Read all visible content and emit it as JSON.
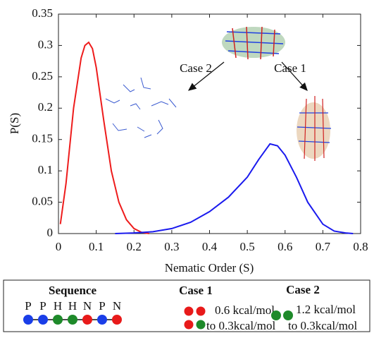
{
  "chart_data": {
    "type": "line",
    "xlabel": "Nematic Order (S)",
    "ylabel": "P(S)",
    "xlim": [
      0,
      0.8
    ],
    "ylim": [
      0,
      0.35
    ],
    "xticks": [
      0,
      0.1,
      0.2,
      0.3,
      0.4,
      0.5,
      0.6,
      0.7,
      0.8
    ],
    "yticks": [
      0,
      0.05,
      0.1,
      0.15,
      0.2,
      0.25,
      0.3,
      0.35
    ],
    "series": [
      {
        "color": "#ee1c1c",
        "x": [
          0.005,
          0.02,
          0.04,
          0.06,
          0.07,
          0.08,
          0.09,
          0.1,
          0.12,
          0.14,
          0.16,
          0.18,
          0.2,
          0.22,
          0.24
        ],
        "values": [
          0.015,
          0.08,
          0.2,
          0.28,
          0.3,
          0.305,
          0.295,
          0.265,
          0.18,
          0.1,
          0.05,
          0.022,
          0.008,
          0.002,
          0
        ]
      },
      {
        "color": "#1a1aee",
        "x": [
          0.15,
          0.2,
          0.25,
          0.3,
          0.35,
          0.4,
          0.45,
          0.5,
          0.53,
          0.56,
          0.58,
          0.6,
          0.63,
          0.66,
          0.7,
          0.73,
          0.76,
          0.78
        ],
        "values": [
          0,
          0.001,
          0.003,
          0.008,
          0.018,
          0.035,
          0.058,
          0.09,
          0.118,
          0.143,
          0.14,
          0.125,
          0.09,
          0.05,
          0.015,
          0.004,
          0.001,
          0
        ]
      }
    ],
    "annotations": [
      "Case 2",
      "Case 1"
    ]
  },
  "legend_box": {
    "sequence_title": "Sequence",
    "sequence_letters": [
      "P",
      "P",
      "H",
      "H",
      "N",
      "P",
      "N"
    ],
    "sequence_colors": [
      "#1a3ee8",
      "#1a3ee8",
      "#1e8a2a",
      "#1e8a2a",
      "#e81a1a",
      "#1a3ee8",
      "#e81a1a"
    ],
    "case1_title": "Case 1",
    "case1_lines": [
      "0.6 kcal/mol",
      "to 0.3kcal/mol"
    ],
    "case2_title": "Case 2",
    "case2_lines": [
      "1.2 kcal/mol",
      "to 0.3kcal/mol"
    ]
  }
}
